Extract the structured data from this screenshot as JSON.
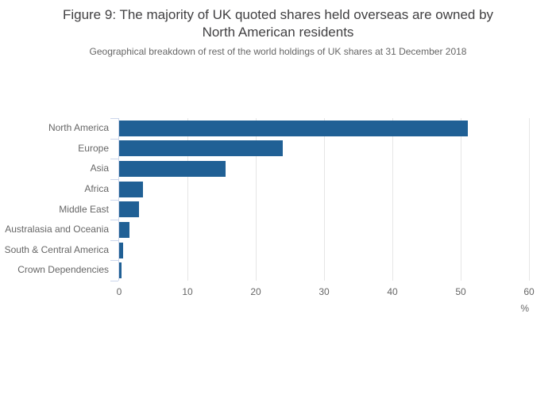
{
  "header": {
    "title_line1": "Figure 9: The majority of UK quoted shares held overseas are owned by",
    "title_line2": "North American residents",
    "subtitle": "Geographical breakdown of rest of the world holdings of UK shares at 31 December 2018"
  },
  "chart_data": {
    "type": "bar",
    "orientation": "horizontal",
    "title": "Figure 9: The majority of UK quoted shares held overseas are owned by North American residents",
    "subtitle": "Geographical breakdown of rest of the world holdings of UK shares at 31 December 2018",
    "categories": [
      "North America",
      "Europe",
      "Asia",
      "Africa",
      "Middle East",
      "Australasia and Oceania",
      "South & Central America",
      "Crown Dependencies"
    ],
    "values": [
      51,
      24,
      15.6,
      3.5,
      2.9,
      1.5,
      0.6,
      0.4
    ],
    "xlabel": "%",
    "xlim": [
      0,
      60
    ],
    "xticks": [
      0,
      10,
      20,
      30,
      40,
      50,
      60
    ],
    "grid": true,
    "legend": "none",
    "colors": {
      "bar": "#206095",
      "gridline": "#e6e6e6",
      "axis_line": "#ccd6eb",
      "title_text": "#414042",
      "label_text": "#666666"
    }
  }
}
